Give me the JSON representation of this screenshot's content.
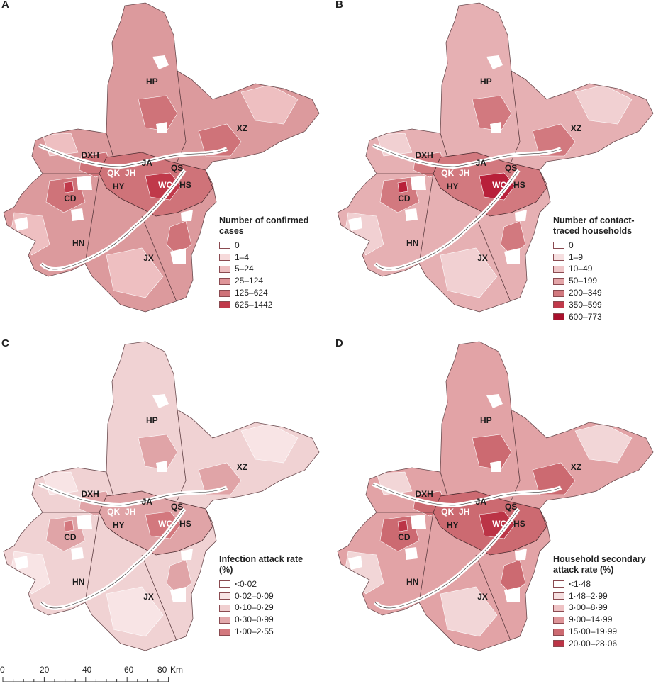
{
  "panels": [
    {
      "letter": "A",
      "legend_title": "Number of confirmed cases",
      "legend": [
        {
          "label": "0",
          "color": "#ffffff"
        },
        {
          "label": "1–4",
          "color": "#f6dadb"
        },
        {
          "label": "5–24",
          "color": "#eebfc1"
        },
        {
          "label": "25–124",
          "color": "#df9599"
        },
        {
          "label": "125–624",
          "color": "#cf7379"
        },
        {
          "label": "625–1442",
          "color": "#c0394a"
        }
      ],
      "fills": {
        "main": "#dc9a9d",
        "dark": "#cf7379",
        "darkest": "#c0394a",
        "light": "#eebfc1"
      }
    },
    {
      "letter": "B",
      "legend_title": "Number of contact-traced households",
      "legend": [
        {
          "label": "0",
          "color": "#ffffff"
        },
        {
          "label": "1–9",
          "color": "#f6dfe0"
        },
        {
          "label": "10–49",
          "color": "#efc6c8"
        },
        {
          "label": "50–199",
          "color": "#e3a5a8"
        },
        {
          "label": "200–349",
          "color": "#d2797f"
        },
        {
          "label": "350–599",
          "color": "#c0394a"
        },
        {
          "label": "600–773",
          "color": "#a8102c"
        }
      ],
      "fills": {
        "main": "#e6b0b3",
        "dark": "#d2797f",
        "darkest": "#b8203a",
        "light": "#f1d0d2"
      }
    },
    {
      "letter": "C",
      "legend_title": "Infection attack rate (%)",
      "legend": [
        {
          "label": "<0·02",
          "color": "#ffffff"
        },
        {
          "label": "0·02–0·09",
          "color": "#f8e4e5"
        },
        {
          "label": "0·10–0·29",
          "color": "#f0cfd0"
        },
        {
          "label": "0·30–0·99",
          "color": "#e3a9ac"
        },
        {
          "label": "1·00–2·55",
          "color": "#d3787e"
        }
      ],
      "fills": {
        "main": "#f0d2d3",
        "dark": "#e0a4a7",
        "darkest": "#d3787e",
        "light": "#f8e4e5"
      }
    },
    {
      "letter": "D",
      "legend_title": "Household secondary attack rate (%)",
      "legend": [
        {
          "label": "<1·48",
          "color": "#ffffff"
        },
        {
          "label": "1·48–2·99",
          "color": "#f6dfe0"
        },
        {
          "label": "3·00–8·99",
          "color": "#eec2c4"
        },
        {
          "label": "9·00–14·99",
          "color": "#de9599"
        },
        {
          "label": "15·00–19·99",
          "color": "#cc6a71"
        },
        {
          "label": "20·00–28·06",
          "color": "#bb3446"
        }
      ],
      "fills": {
        "main": "#e2a3a6",
        "dark": "#cc6a71",
        "darkest": "#bb3446",
        "light": "#f2d6d7"
      }
    }
  ],
  "district_labels": [
    {
      "name": "HP",
      "rx": 0.455,
      "ry": 0.245,
      "white": false
    },
    {
      "name": "XZ",
      "rx": 0.725,
      "ry": 0.385,
      "white": false
    },
    {
      "name": "DXH",
      "rx": 0.27,
      "ry": 0.465,
      "white": false
    },
    {
      "name": "JA",
      "rx": 0.44,
      "ry": 0.49,
      "white": false
    },
    {
      "name": "QS",
      "rx": 0.53,
      "ry": 0.505,
      "white": false
    },
    {
      "name": "QK",
      "rx": 0.34,
      "ry": 0.52,
      "white": true
    },
    {
      "name": "JH",
      "rx": 0.39,
      "ry": 0.52,
      "white": true
    },
    {
      "name": "HY",
      "rx": 0.355,
      "ry": 0.56,
      "white": false
    },
    {
      "name": "WC",
      "rx": 0.495,
      "ry": 0.555,
      "white": true
    },
    {
      "name": "HS",
      "rx": 0.555,
      "ry": 0.555,
      "white": false
    },
    {
      "name": "CD",
      "rx": 0.21,
      "ry": 0.595,
      "white": false
    },
    {
      "name": "HN",
      "rx": 0.235,
      "ry": 0.73,
      "white": false
    },
    {
      "name": "JX",
      "rx": 0.445,
      "ry": 0.775,
      "white": false
    }
  ],
  "scale": {
    "ticks": [
      "0",
      "20",
      "40",
      "60",
      "80"
    ],
    "unit": "Km"
  }
}
